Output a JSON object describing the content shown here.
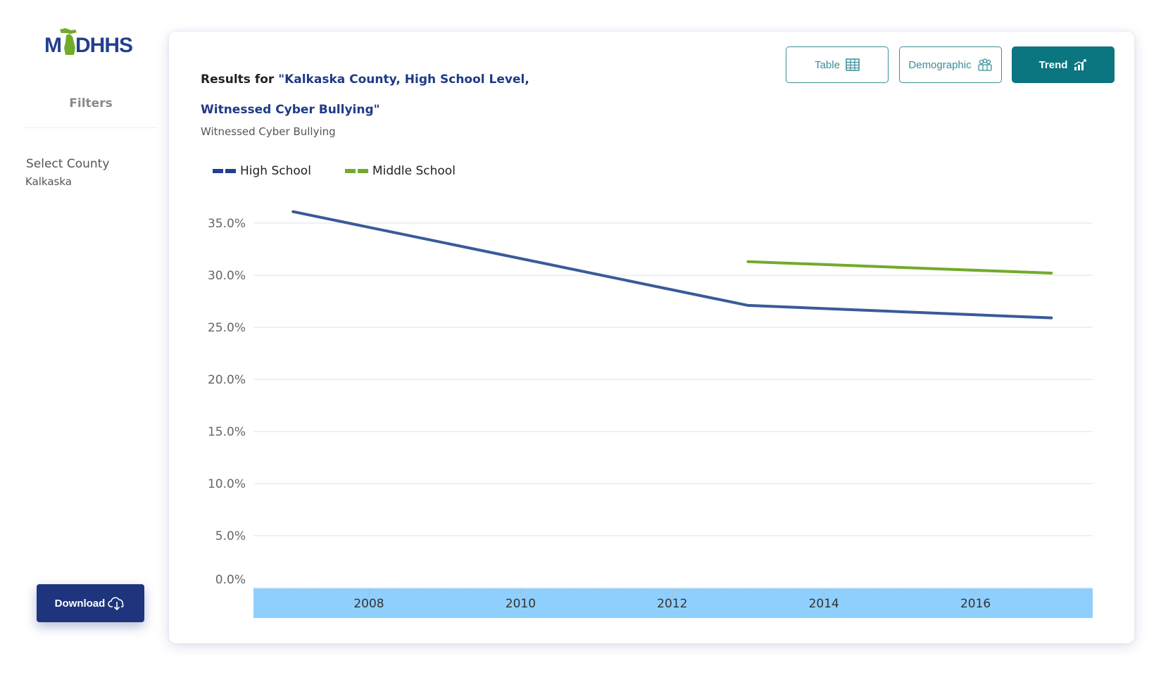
{
  "sidebar": {
    "logo_text": "MIDHHS",
    "filters_title": "Filters",
    "filter_label": "Select County",
    "filter_value": "Kalkaska",
    "download_label": "Download",
    "download_icon": "cloud-download-icon"
  },
  "header": {
    "title_prefix": "Results for ",
    "title_highlight_line1": "\"Kalkaska County, High School Level,",
    "title_highlight_line2": "Witnessed Cyber Bullying\"",
    "subtitle": "Witnessed Cyber Bullying"
  },
  "view_buttons": [
    {
      "label": "Table",
      "icon": "table-grid-icon",
      "active": false
    },
    {
      "label": "Demographic",
      "icon": "people-group-icon",
      "active": false
    },
    {
      "label": "Trend",
      "icon": "bar-chart-trend-icon",
      "active": true
    }
  ],
  "colors": {
    "brand_navy": "#1e357d",
    "teal": "#0b7580",
    "high_school": "#3a5a99",
    "middle_school": "#72ab2a",
    "axis_band": "#8ecffd"
  },
  "chart_data": {
    "type": "line",
    "title": "Witnessed Cyber Bullying",
    "xlabel": "",
    "ylabel": "",
    "x_ticks": [
      "2008",
      "2010",
      "2012",
      "2014",
      "2016"
    ],
    "y_ticks": [
      "0.0%",
      "5.0%",
      "10.0%",
      "15.0%",
      "20.0%",
      "25.0%",
      "30.0%",
      "35.0%"
    ],
    "xlim": [
      2006,
      2017.5
    ],
    "ylim": [
      0,
      36.5
    ],
    "grid": true,
    "legend_position": "top-left",
    "series": [
      {
        "name": "High School",
        "x": [
          2007,
          2013,
          2017
        ],
        "values": [
          36.1,
          27.1,
          25.9
        ],
        "color": "#3a5a99",
        "legend_color": "#233f8f"
      },
      {
        "name": "Middle School",
        "x": [
          2013,
          2017
        ],
        "values": [
          31.3,
          30.2
        ],
        "color": "#72ab2a",
        "legend_color": "#72ab2a"
      }
    ]
  }
}
